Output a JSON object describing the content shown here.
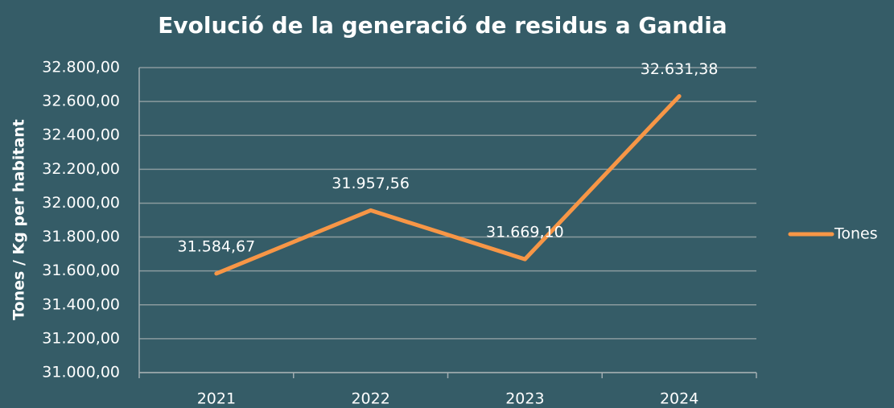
{
  "chart_data": {
    "type": "line",
    "title": "Evolució de la generació de residus a Gandia",
    "y_label": "Tones / Kg per habitant",
    "categories": [
      "2021",
      "2022",
      "2023",
      "2024"
    ],
    "series": [
      {
        "name": "Tones",
        "color": "#f79646",
        "values": [
          31584.67,
          31957.56,
          31669.1,
          32631.38
        ],
        "value_labels": [
          "31.584,67",
          "31.957,56",
          "31.669,10",
          "32.631,38"
        ]
      }
    ],
    "ylim": [
      31000,
      32800
    ],
    "yticks": [
      {
        "value": 31000,
        "label": "31.000,00"
      },
      {
        "value": 31200,
        "label": "31.200,00"
      },
      {
        "value": 31400,
        "label": "31.400,00"
      },
      {
        "value": 31600,
        "label": "31.600,00"
      },
      {
        "value": 31800,
        "label": "31.800,00"
      },
      {
        "value": 32000,
        "label": "32.000,00"
      },
      {
        "value": 32200,
        "label": "32.200,00"
      },
      {
        "value": 32400,
        "label": "32.400,00"
      },
      {
        "value": 32600,
        "label": "32.600,00"
      },
      {
        "value": 32800,
        "label": "32.800,00"
      }
    ],
    "grid": true,
    "legend": "right"
  }
}
